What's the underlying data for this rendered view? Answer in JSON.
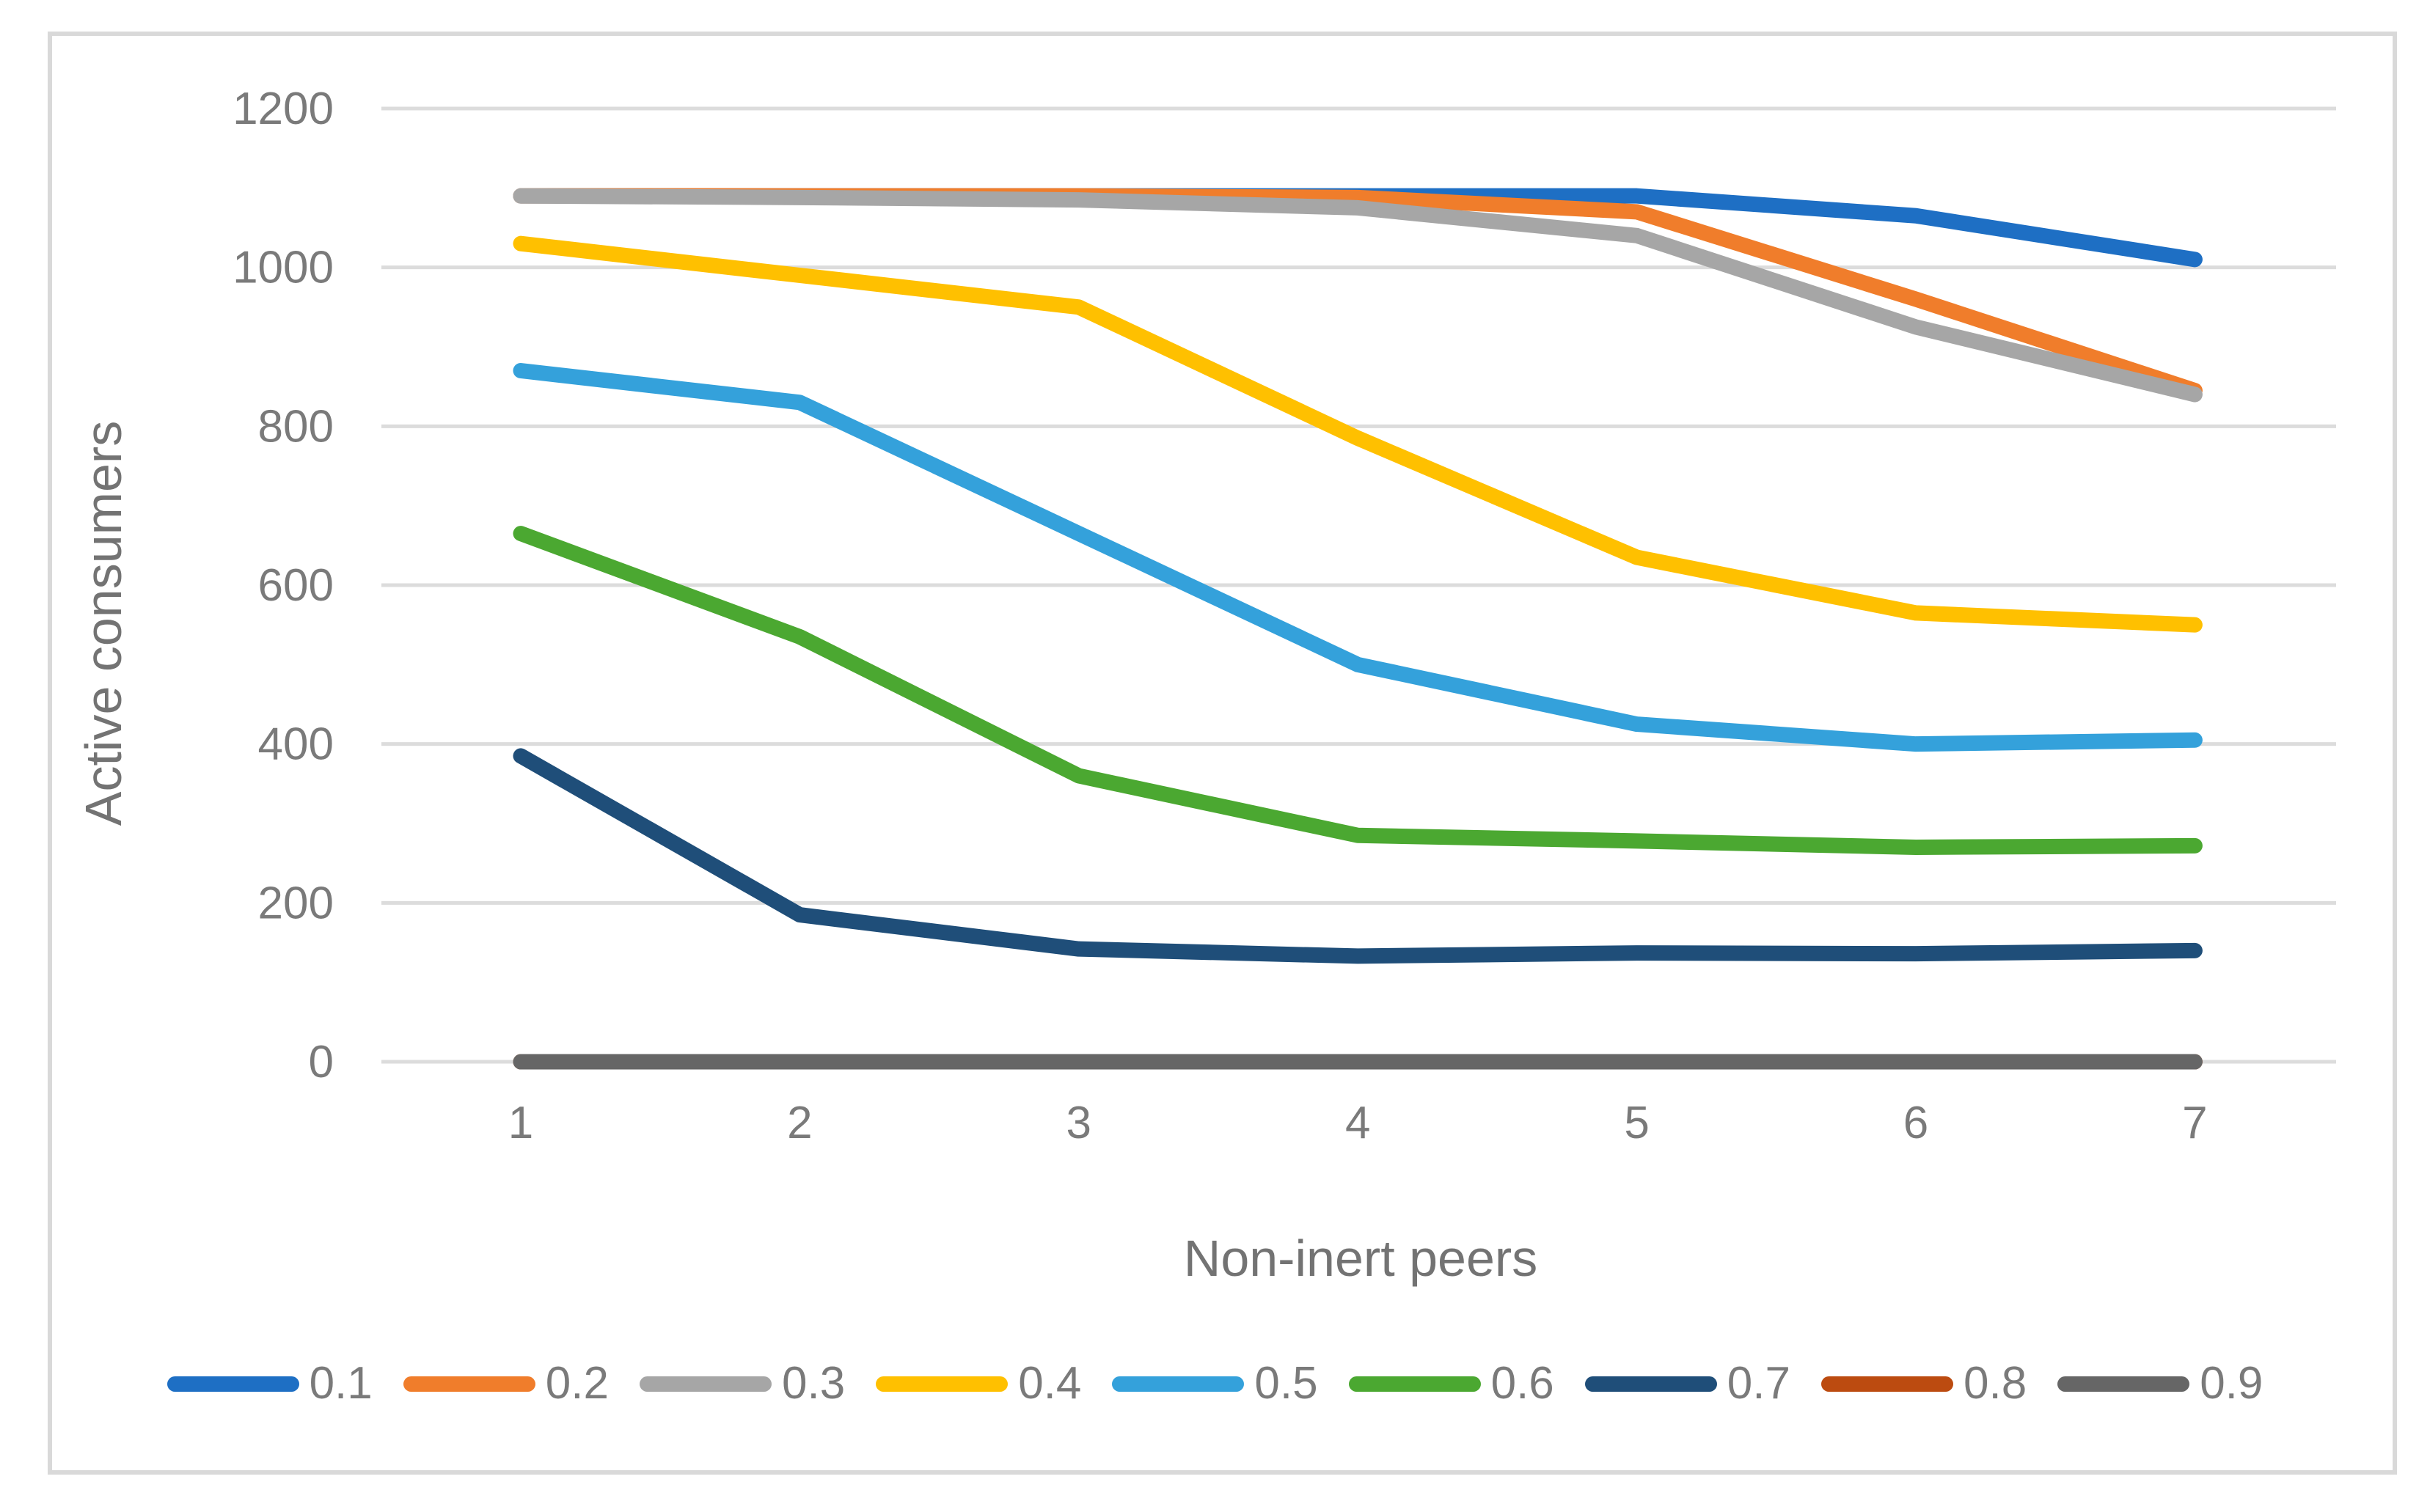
{
  "chart_data": {
    "type": "line",
    "title": "",
    "xlabel": "Non-inert peers",
    "ylabel": "Active consumers",
    "x": [
      1,
      2,
      3,
      4,
      5,
      6,
      7
    ],
    "x_tick_labels": [
      "1",
      "2",
      "3",
      "4",
      "5",
      "6",
      "7"
    ],
    "ylim": [
      0,
      1200
    ],
    "y_ticks": [
      0,
      200,
      400,
      600,
      800,
      1000,
      1200
    ],
    "grid": "horizontal",
    "legend_position": "bottom",
    "series": [
      {
        "name": "0.1",
        "color": "#1E6FC4",
        "values": [
          1090,
          1090,
          1090,
          1090,
          1090,
          1065,
          1010
        ]
      },
      {
        "name": "0.2",
        "color": "#F07D2B",
        "values": [
          1090,
          1090,
          1090,
          1088,
          1070,
          960,
          845
        ]
      },
      {
        "name": "0.3",
        "color": "#A6A6A6",
        "values": [
          1090,
          1088,
          1085,
          1075,
          1040,
          925,
          840
        ]
      },
      {
        "name": "0.4",
        "color": "#FFC000",
        "values": [
          1030,
          990,
          950,
          785,
          635,
          565,
          550
        ]
      },
      {
        "name": "0.5",
        "color": "#34A1DB",
        "values": [
          870,
          830,
          665,
          500,
          425,
          400,
          405
        ]
      },
      {
        "name": "0.6",
        "color": "#4BA831",
        "values": [
          665,
          535,
          360,
          285,
          278,
          270,
          272
        ]
      },
      {
        "name": "0.7",
        "color": "#1F4E79",
        "values": [
          385,
          185,
          142,
          133,
          137,
          136,
          140
        ]
      },
      {
        "name": "0.8",
        "color": "#BC4B10",
        "values": [
          0,
          0,
          0,
          0,
          0,
          0,
          0
        ]
      },
      {
        "name": "0.9",
        "color": "#666666",
        "values": [
          0,
          0,
          0,
          0,
          0,
          0,
          0
        ]
      }
    ]
  },
  "labels": {
    "x_axis_title": "Non-inert peers",
    "y_axis_title": "Active consumers"
  },
  "style": {
    "background": "#FFFFFF",
    "border": "#D9D9D9",
    "gridline": "#DCDCDC",
    "tick_text": "#7A7A7A",
    "axis_title_text": "#737373"
  }
}
